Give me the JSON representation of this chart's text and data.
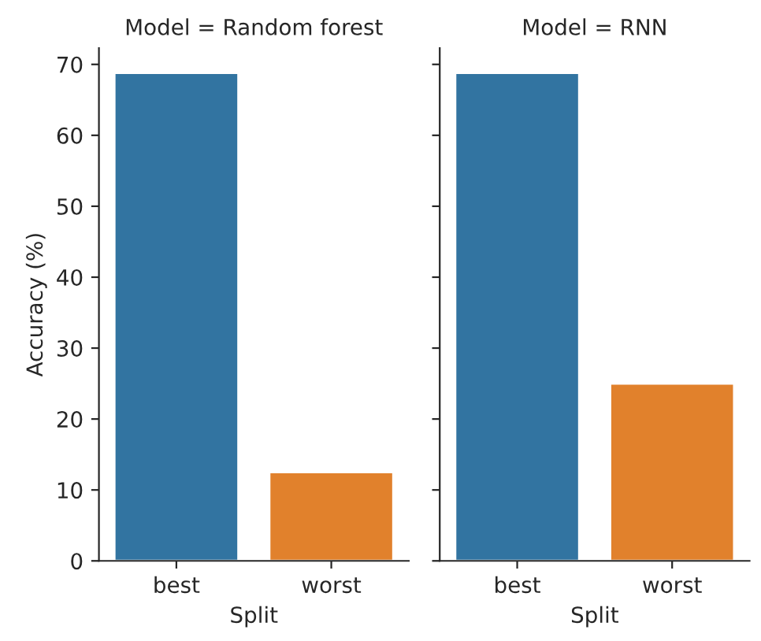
{
  "chart_data": [
    {
      "type": "bar",
      "title": "Model = Random forest",
      "xlabel": "Split",
      "ylabel": "Accuracy (%)",
      "categories": [
        "best",
        "worst"
      ],
      "values": [
        68.8,
        12.5
      ],
      "colors": [
        "#3274a1",
        "#e1812c"
      ],
      "ylim": [
        0,
        72.3
      ],
      "yticks": [
        0,
        10,
        20,
        30,
        40,
        50,
        60,
        70
      ],
      "grid": false,
      "legend": false
    },
    {
      "type": "bar",
      "title": "Model = RNN",
      "xlabel": "Split",
      "categories": [
        "best",
        "worst"
      ],
      "values": [
        68.8,
        25
      ],
      "colors": [
        "#3274a1",
        "#e1812c"
      ],
      "ylim": [
        0,
        72.3
      ],
      "yticks": [
        0,
        10,
        20,
        30,
        40,
        50,
        60,
        70
      ],
      "tick_labels": "x",
      "grid": false,
      "legend": false
    }
  ]
}
